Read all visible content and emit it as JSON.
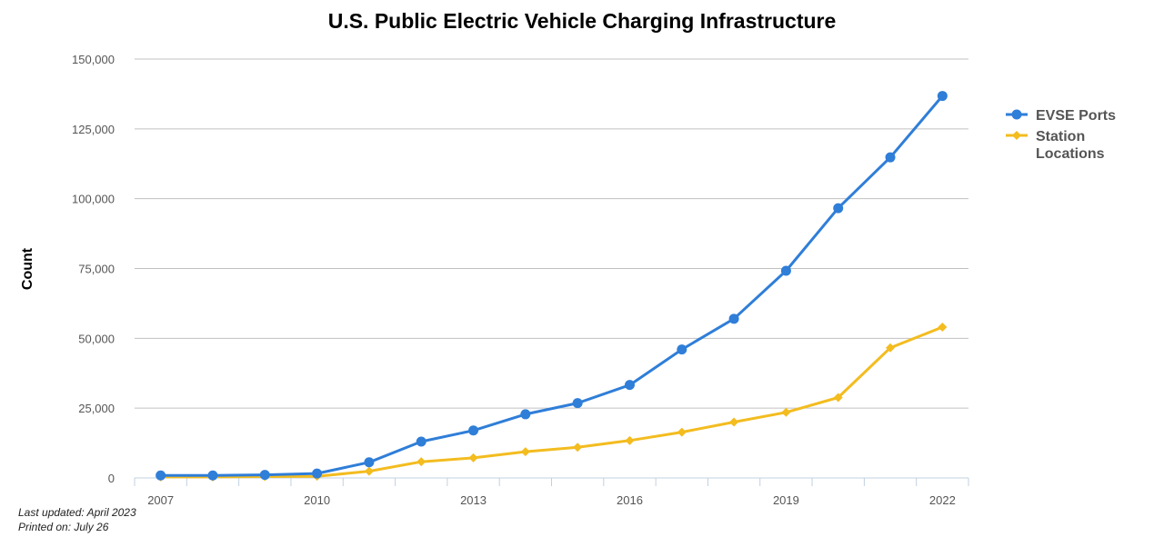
{
  "chart_data": {
    "type": "line",
    "title": "U.S. Public Electric Vehicle Charging Infrastructure",
    "xlabel": "",
    "ylabel": "Count",
    "x": [
      2007,
      2008,
      2009,
      2010,
      2011,
      2012,
      2013,
      2014,
      2015,
      2016,
      2017,
      2018,
      2019,
      2020,
      2021,
      2022
    ],
    "x_tick_labels": [
      "2007",
      "2010",
      "2013",
      "2016",
      "2019",
      "2022"
    ],
    "y_tick_labels": [
      "0",
      "25,000",
      "50,000",
      "75,000",
      "100,000",
      "125,000",
      "150,000"
    ],
    "ylim": [
      0,
      150000
    ],
    "grid": true,
    "legend_position": "right",
    "series": [
      {
        "name": "EVSE Ports",
        "color": "#2f7ed8",
        "marker": "circle",
        "values": [
          900,
          900,
          1100,
          1600,
          5600,
          13000,
          17000,
          22800,
          26800,
          33300,
          46000,
          57000,
          74200,
          96600,
          114800,
          136800
        ]
      },
      {
        "name": "Station Locations",
        "color": "#f3bc1f",
        "marker": "diamond",
        "values": [
          350,
          350,
          500,
          600,
          2400,
          5800,
          7200,
          9400,
          11000,
          13400,
          16400,
          20000,
          23500,
          28800,
          46600,
          54000
        ]
      }
    ]
  },
  "footer": {
    "last_updated": "Last updated: April 2023",
    "printed_on": "Printed on: July 26"
  }
}
